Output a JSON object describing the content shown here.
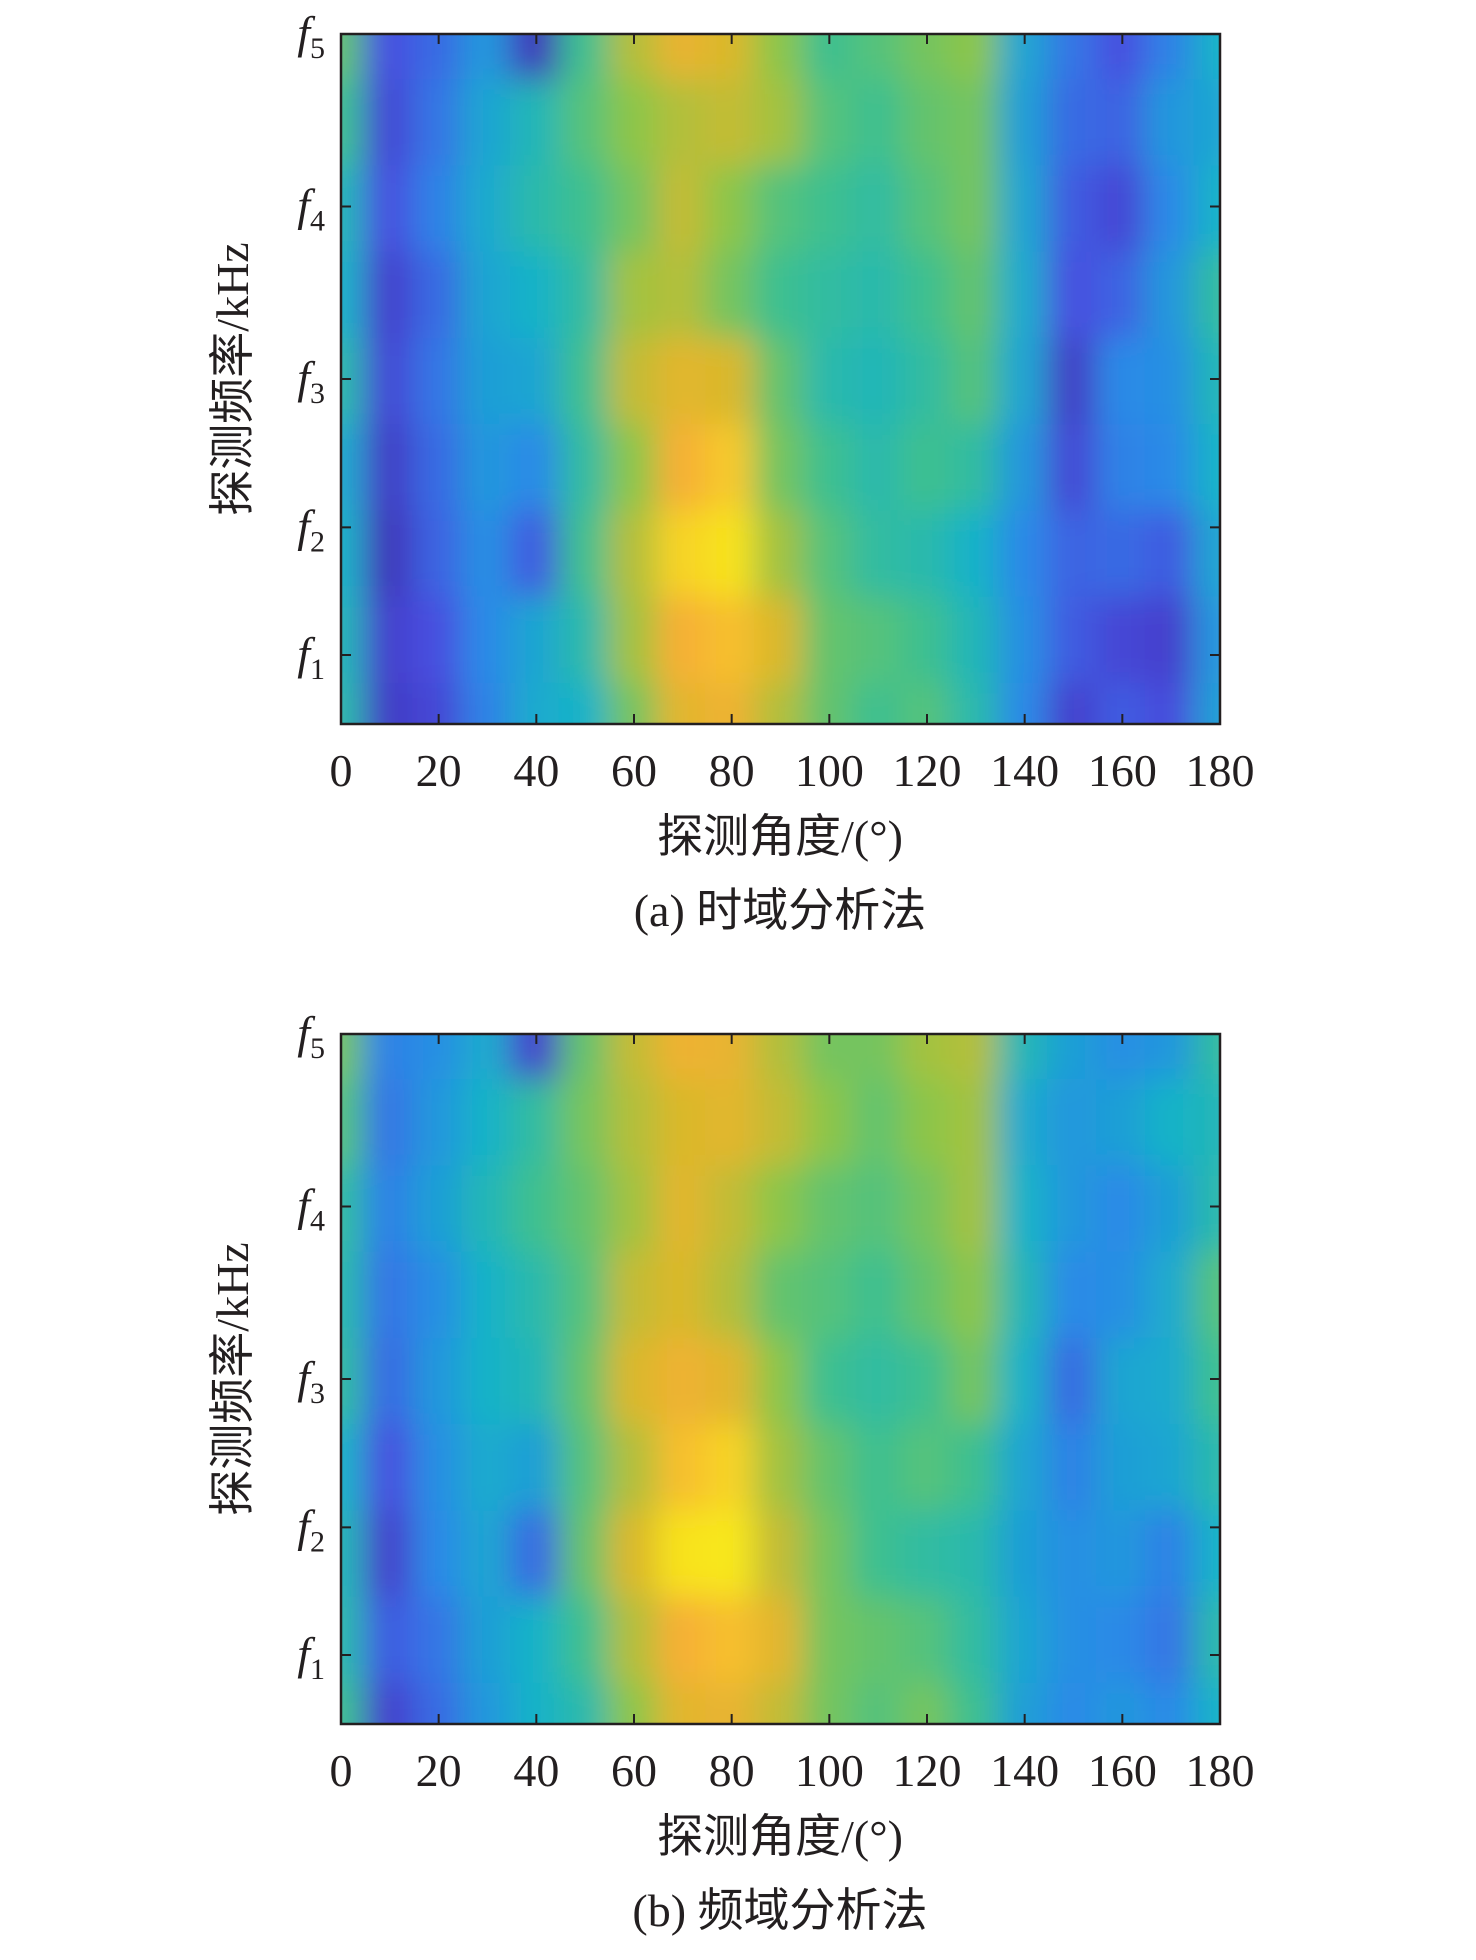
{
  "chart_data": [
    {
      "type": "heatmap",
      "caption": "(a) 时域分析法",
      "xlabel": "探测角度/(°)",
      "ylabel": "探测频率/kHz",
      "xlim": [
        0,
        180
      ],
      "xticks": [
        "0",
        "20",
        "40",
        "60",
        "80",
        "100",
        "120",
        "140",
        "160",
        "180"
      ],
      "yticks": [
        {
          "base": "f",
          "sub": "1",
          "pos": 0.1
        },
        {
          "base": "f",
          "sub": "2",
          "pos": 0.285
        },
        {
          "base": "f",
          "sub": "3",
          "pos": 0.5
        },
        {
          "base": "f",
          "sub": "4",
          "pos": 0.75
        },
        {
          "base": "f",
          "sub": "5",
          "pos": 1.0
        }
      ],
      "angles": [
        0,
        10,
        20,
        30,
        40,
        50,
        60,
        70,
        80,
        90,
        100,
        110,
        120,
        130,
        140,
        150,
        160,
        170,
        180
      ],
      "rows": [
        [
          0.5,
          0.08,
          0.12,
          0.28,
          0.42,
          0.45,
          0.62,
          0.78,
          0.82,
          0.7,
          0.6,
          0.55,
          0.58,
          0.5,
          0.3,
          0.1,
          0.18,
          0.14,
          0.38
        ],
        [
          0.48,
          0.1,
          0.15,
          0.3,
          0.4,
          0.5,
          0.68,
          0.85,
          0.88,
          0.75,
          0.6,
          0.58,
          0.55,
          0.48,
          0.32,
          0.18,
          0.12,
          0.1,
          0.35
        ],
        [
          0.45,
          0.05,
          0.2,
          0.32,
          0.18,
          0.55,
          0.7,
          0.92,
          0.95,
          0.68,
          0.58,
          0.52,
          0.5,
          0.45,
          0.3,
          0.2,
          0.22,
          0.18,
          0.4
        ],
        [
          0.42,
          0.08,
          0.22,
          0.35,
          0.3,
          0.52,
          0.65,
          0.85,
          0.9,
          0.62,
          0.55,
          0.5,
          0.55,
          0.52,
          0.35,
          0.12,
          0.28,
          0.3,
          0.45
        ],
        [
          0.5,
          0.12,
          0.25,
          0.38,
          0.4,
          0.55,
          0.72,
          0.78,
          0.75,
          0.6,
          0.5,
          0.48,
          0.52,
          0.58,
          0.4,
          0.08,
          0.3,
          0.32,
          0.48
        ],
        [
          0.45,
          0.1,
          0.22,
          0.4,
          0.45,
          0.52,
          0.68,
          0.7,
          0.62,
          0.55,
          0.52,
          0.5,
          0.55,
          0.6,
          0.42,
          0.15,
          0.2,
          0.35,
          0.52
        ],
        [
          0.48,
          0.15,
          0.28,
          0.42,
          0.5,
          0.55,
          0.62,
          0.72,
          0.65,
          0.58,
          0.55,
          0.52,
          0.58,
          0.62,
          0.4,
          0.18,
          0.12,
          0.3,
          0.45
        ],
        [
          0.55,
          0.12,
          0.25,
          0.4,
          0.48,
          0.58,
          0.65,
          0.7,
          0.72,
          0.68,
          0.58,
          0.55,
          0.6,
          0.62,
          0.38,
          0.22,
          0.2,
          0.35,
          0.4
        ],
        [
          0.6,
          0.15,
          0.22,
          0.35,
          0.05,
          0.55,
          0.7,
          0.8,
          0.75,
          0.65,
          0.55,
          0.58,
          0.62,
          0.65,
          0.4,
          0.25,
          0.15,
          0.28,
          0.45
        ]
      ]
    },
    {
      "type": "heatmap",
      "caption": "(b) 频域分析法",
      "xlabel": "探测角度/(°)",
      "ylabel": "探测频率/kHz",
      "xlim": [
        0,
        180
      ],
      "xticks": [
        "0",
        "20",
        "40",
        "60",
        "80",
        "100",
        "120",
        "140",
        "160",
        "180"
      ],
      "yticks": [
        {
          "base": "f",
          "sub": "1",
          "pos": 0.1
        },
        {
          "base": "f",
          "sub": "2",
          "pos": 0.285
        },
        {
          "base": "f",
          "sub": "3",
          "pos": 0.5
        },
        {
          "base": "f",
          "sub": "4",
          "pos": 0.75
        },
        {
          "base": "f",
          "sub": "5",
          "pos": 1.0
        }
      ],
      "angles": [
        0,
        10,
        20,
        30,
        40,
        50,
        60,
        70,
        80,
        90,
        100,
        110,
        120,
        130,
        140,
        150,
        160,
        170,
        180
      ],
      "rows": [
        [
          0.55,
          0.1,
          0.22,
          0.35,
          0.45,
          0.5,
          0.65,
          0.78,
          0.8,
          0.72,
          0.62,
          0.58,
          0.62,
          0.55,
          0.38,
          0.3,
          0.35,
          0.3,
          0.45
        ],
        [
          0.5,
          0.18,
          0.25,
          0.38,
          0.45,
          0.55,
          0.7,
          0.85,
          0.88,
          0.78,
          0.62,
          0.6,
          0.58,
          0.52,
          0.4,
          0.32,
          0.3,
          0.25,
          0.5
        ],
        [
          0.48,
          0.1,
          0.3,
          0.4,
          0.22,
          0.6,
          0.75,
          0.95,
          0.96,
          0.72,
          0.62,
          0.55,
          0.52,
          0.5,
          0.38,
          0.32,
          0.35,
          0.28,
          0.45
        ],
        [
          0.45,
          0.15,
          0.32,
          0.42,
          0.38,
          0.58,
          0.7,
          0.88,
          0.92,
          0.68,
          0.6,
          0.55,
          0.58,
          0.55,
          0.4,
          0.28,
          0.38,
          0.4,
          0.5
        ],
        [
          0.52,
          0.22,
          0.35,
          0.45,
          0.48,
          0.6,
          0.75,
          0.82,
          0.78,
          0.65,
          0.55,
          0.52,
          0.55,
          0.62,
          0.45,
          0.22,
          0.4,
          0.42,
          0.55
        ],
        [
          0.5,
          0.25,
          0.32,
          0.45,
          0.5,
          0.58,
          0.72,
          0.75,
          0.7,
          0.6,
          0.58,
          0.55,
          0.6,
          0.65,
          0.48,
          0.3,
          0.32,
          0.42,
          0.58
        ],
        [
          0.52,
          0.28,
          0.38,
          0.48,
          0.55,
          0.6,
          0.68,
          0.78,
          0.72,
          0.65,
          0.6,
          0.58,
          0.62,
          0.68,
          0.45,
          0.35,
          0.3,
          0.38,
          0.5
        ],
        [
          0.58,
          0.25,
          0.35,
          0.45,
          0.52,
          0.62,
          0.7,
          0.75,
          0.78,
          0.72,
          0.65,
          0.6,
          0.65,
          0.68,
          0.42,
          0.35,
          0.38,
          0.45,
          0.48
        ],
        [
          0.62,
          0.28,
          0.32,
          0.42,
          0.1,
          0.6,
          0.72,
          0.82,
          0.8,
          0.7,
          0.62,
          0.62,
          0.68,
          0.7,
          0.48,
          0.38,
          0.32,
          0.35,
          0.52
        ]
      ]
    }
  ]
}
